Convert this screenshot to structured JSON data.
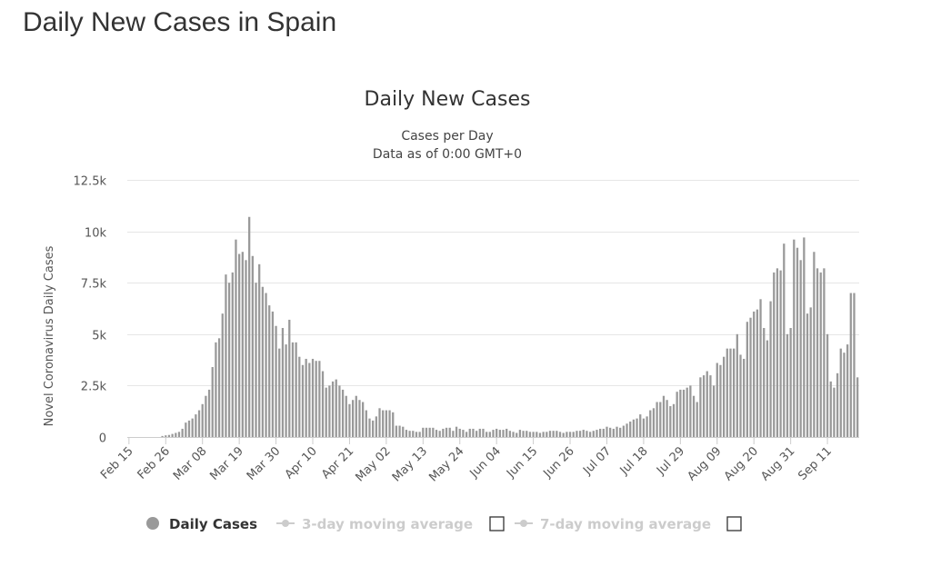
{
  "page": {
    "title": "Daily New Cases in Spain"
  },
  "chart_data": {
    "type": "bar",
    "title": "Daily New Cases",
    "subtitle_lines": [
      "Cases per Day",
      "Data as of 0:00 GMT+0"
    ],
    "ylabel": "Novel Coronavirus Daily Cases",
    "xlabel": "",
    "ylim": [
      0,
      12500
    ],
    "y_ticks": [
      0,
      2500,
      5000,
      7500,
      10000,
      12500
    ],
    "y_tick_labels": [
      "0",
      "2.5k",
      "5k",
      "7.5k",
      "10k",
      "12.5k"
    ],
    "grid": true,
    "x_tick_labels": [
      "Feb 15",
      "Feb 26",
      "Mar 08",
      "Mar 19",
      "Mar 30",
      "Apr 10",
      "Apr 21",
      "May 02",
      "May 13",
      "May 24",
      "Jun 04",
      "Jun 15",
      "Jun 26",
      "Jul 07",
      "Jul 18",
      "Jul 29",
      "Aug 09",
      "Aug 20",
      "Aug 31",
      "Sep 11"
    ],
    "series": [
      {
        "name": "Daily Cases",
        "color": "#999999",
        "start_date": "Feb 15",
        "values": [
          0,
          0,
          0,
          0,
          0,
          0,
          0,
          0,
          0,
          0,
          50,
          80,
          100,
          150,
          200,
          250,
          400,
          700,
          800,
          900,
          1100,
          1300,
          1600,
          2000,
          2300,
          3400,
          4600,
          4800,
          6000,
          7900,
          7500,
          8000,
          9600,
          8900,
          9000,
          8600,
          10700,
          8800,
          7500,
          8400,
          7300,
          7000,
          6400,
          6100,
          5400,
          4300,
          5300,
          4500,
          5700,
          4600,
          4600,
          3900,
          3500,
          3800,
          3600,
          3800,
          3700,
          3700,
          3200,
          2400,
          2500,
          2700,
          2800,
          2500,
          2300,
          2000,
          1600,
          1800,
          2000,
          1800,
          1700,
          1300,
          900,
          800,
          1000,
          1400,
          1300,
          1300,
          1300,
          1200,
          550,
          550,
          500,
          350,
          300,
          300,
          250,
          250,
          450,
          450,
          450,
          450,
          350,
          300,
          400,
          450,
          450,
          300,
          500,
          400,
          350,
          250,
          400,
          400,
          300,
          400,
          400,
          250,
          250,
          350,
          400,
          350,
          350,
          400,
          300,
          250,
          200,
          350,
          300,
          300,
          250,
          250,
          250,
          200,
          250,
          250,
          300,
          300,
          300,
          250,
          200,
          250,
          250,
          250,
          300,
          300,
          350,
          300,
          250,
          300,
          350,
          400,
          400,
          500,
          450,
          400,
          500,
          450,
          550,
          650,
          750,
          850,
          900,
          1100,
          900,
          1000,
          1300,
          1400,
          1700,
          1700,
          2000,
          1800,
          1500,
          1600,
          2200,
          2300,
          2300,
          2400,
          2500,
          2000,
          1700,
          2900,
          3000,
          3200,
          3000,
          2500,
          3600,
          3500,
          3900,
          4300,
          4300,
          4300,
          5000,
          4000,
          3800,
          5600,
          5800,
          6100,
          6200,
          6700,
          5300,
          4700,
          6600,
          8000,
          8200,
          8100,
          9400,
          5000,
          5300,
          9600,
          9200,
          8600,
          9700,
          6000,
          6300,
          9000,
          8200,
          8000,
          8200,
          5000,
          2700,
          2400,
          3100,
          4300,
          4100,
          4500,
          7000,
          7000,
          2900
        ]
      },
      {
        "name": "3-day moving average",
        "visible": false
      },
      {
        "name": "7-day moving average",
        "visible": false
      }
    ],
    "legend": {
      "placement": "bottom",
      "items": [
        {
          "label": "Daily Cases",
          "active": true,
          "color": "#999999"
        },
        {
          "label": "3-day moving average",
          "active": false,
          "color": "#cccccc"
        },
        {
          "label": "7-day moving average",
          "active": false,
          "color": "#cccccc"
        }
      ]
    }
  }
}
